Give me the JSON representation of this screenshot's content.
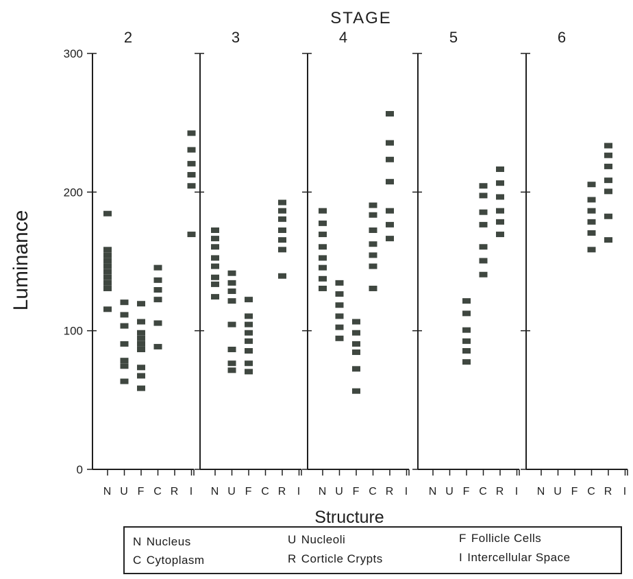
{
  "chart_data": {
    "type": "scatter",
    "title": "STAGE",
    "xlabel": "Structure",
    "ylabel": "Luminance",
    "ylim": [
      0,
      300
    ],
    "yticks": [
      "0",
      "100",
      "200",
      "300"
    ],
    "categories": [
      "N",
      "U",
      "F",
      "C",
      "R",
      "I"
    ],
    "grid": false,
    "legend_position": "bottom-right",
    "panels": [
      {
        "stage": "2",
        "points": {
          "N": [
            184,
            158,
            154,
            150,
            146,
            142,
            138,
            134,
            130,
            115
          ],
          "U": [
            120,
            111,
            103,
            90,
            78,
            74,
            63
          ],
          "F": [
            119,
            106,
            98,
            94,
            90,
            86,
            73,
            67,
            58
          ],
          "C": [
            145,
            136,
            129,
            122,
            105,
            88
          ],
          "R": [],
          "I": [
            242,
            230,
            220,
            212,
            204,
            169
          ]
        }
      },
      {
        "stage": "3",
        "points": {
          "N": [
            172,
            166,
            160,
            152,
            146,
            138,
            133,
            124
          ],
          "U": [
            141,
            134,
            128,
            121,
            104,
            86,
            76,
            71
          ],
          "F": [
            122,
            110,
            104,
            98,
            92,
            85,
            76,
            70
          ],
          "C": [],
          "R": [
            192,
            186,
            180,
            172,
            165,
            158,
            139
          ],
          "I": []
        }
      },
      {
        "stage": "4",
        "points": {
          "N": [
            186,
            177,
            169,
            160,
            152,
            145,
            137,
            130
          ],
          "U": [
            134,
            126,
            118,
            110,
            102,
            94
          ],
          "F": [
            106,
            98,
            90,
            84,
            72,
            56
          ],
          "C": [
            190,
            183,
            172,
            162,
            154,
            146,
            130
          ],
          "R": [
            256,
            235,
            223,
            207,
            186,
            176,
            166
          ],
          "I": []
        }
      },
      {
        "stage": "5",
        "points": {
          "N": [],
          "U": [],
          "F": [
            121,
            112,
            100,
            92,
            85,
            77
          ],
          "C": [
            204,
            197,
            185,
            176,
            160,
            150,
            140
          ],
          "R": [
            216,
            206,
            196,
            186,
            178,
            169
          ],
          "I": []
        }
      },
      {
        "stage": "6",
        "points": {
          "N": [],
          "U": [],
          "F": [],
          "C": [
            205,
            194,
            186,
            178,
            170,
            158
          ],
          "R": [
            233,
            226,
            218,
            208,
            200,
            182,
            165
          ],
          "I": []
        }
      }
    ],
    "legend": [
      {
        "code": "N",
        "label": "Nucleus"
      },
      {
        "code": "U",
        "label": "Nucleoli"
      },
      {
        "code": "F",
        "label": "Follicle Cells"
      },
      {
        "code": "C",
        "label": "Cytoplasm"
      },
      {
        "code": "R",
        "label": "Corticle Crypts"
      },
      {
        "code": "I",
        "label": "Intercellular Space"
      }
    ],
    "colors": {
      "marker": "#3f4740",
      "axis": "#1e1e1e"
    }
  }
}
